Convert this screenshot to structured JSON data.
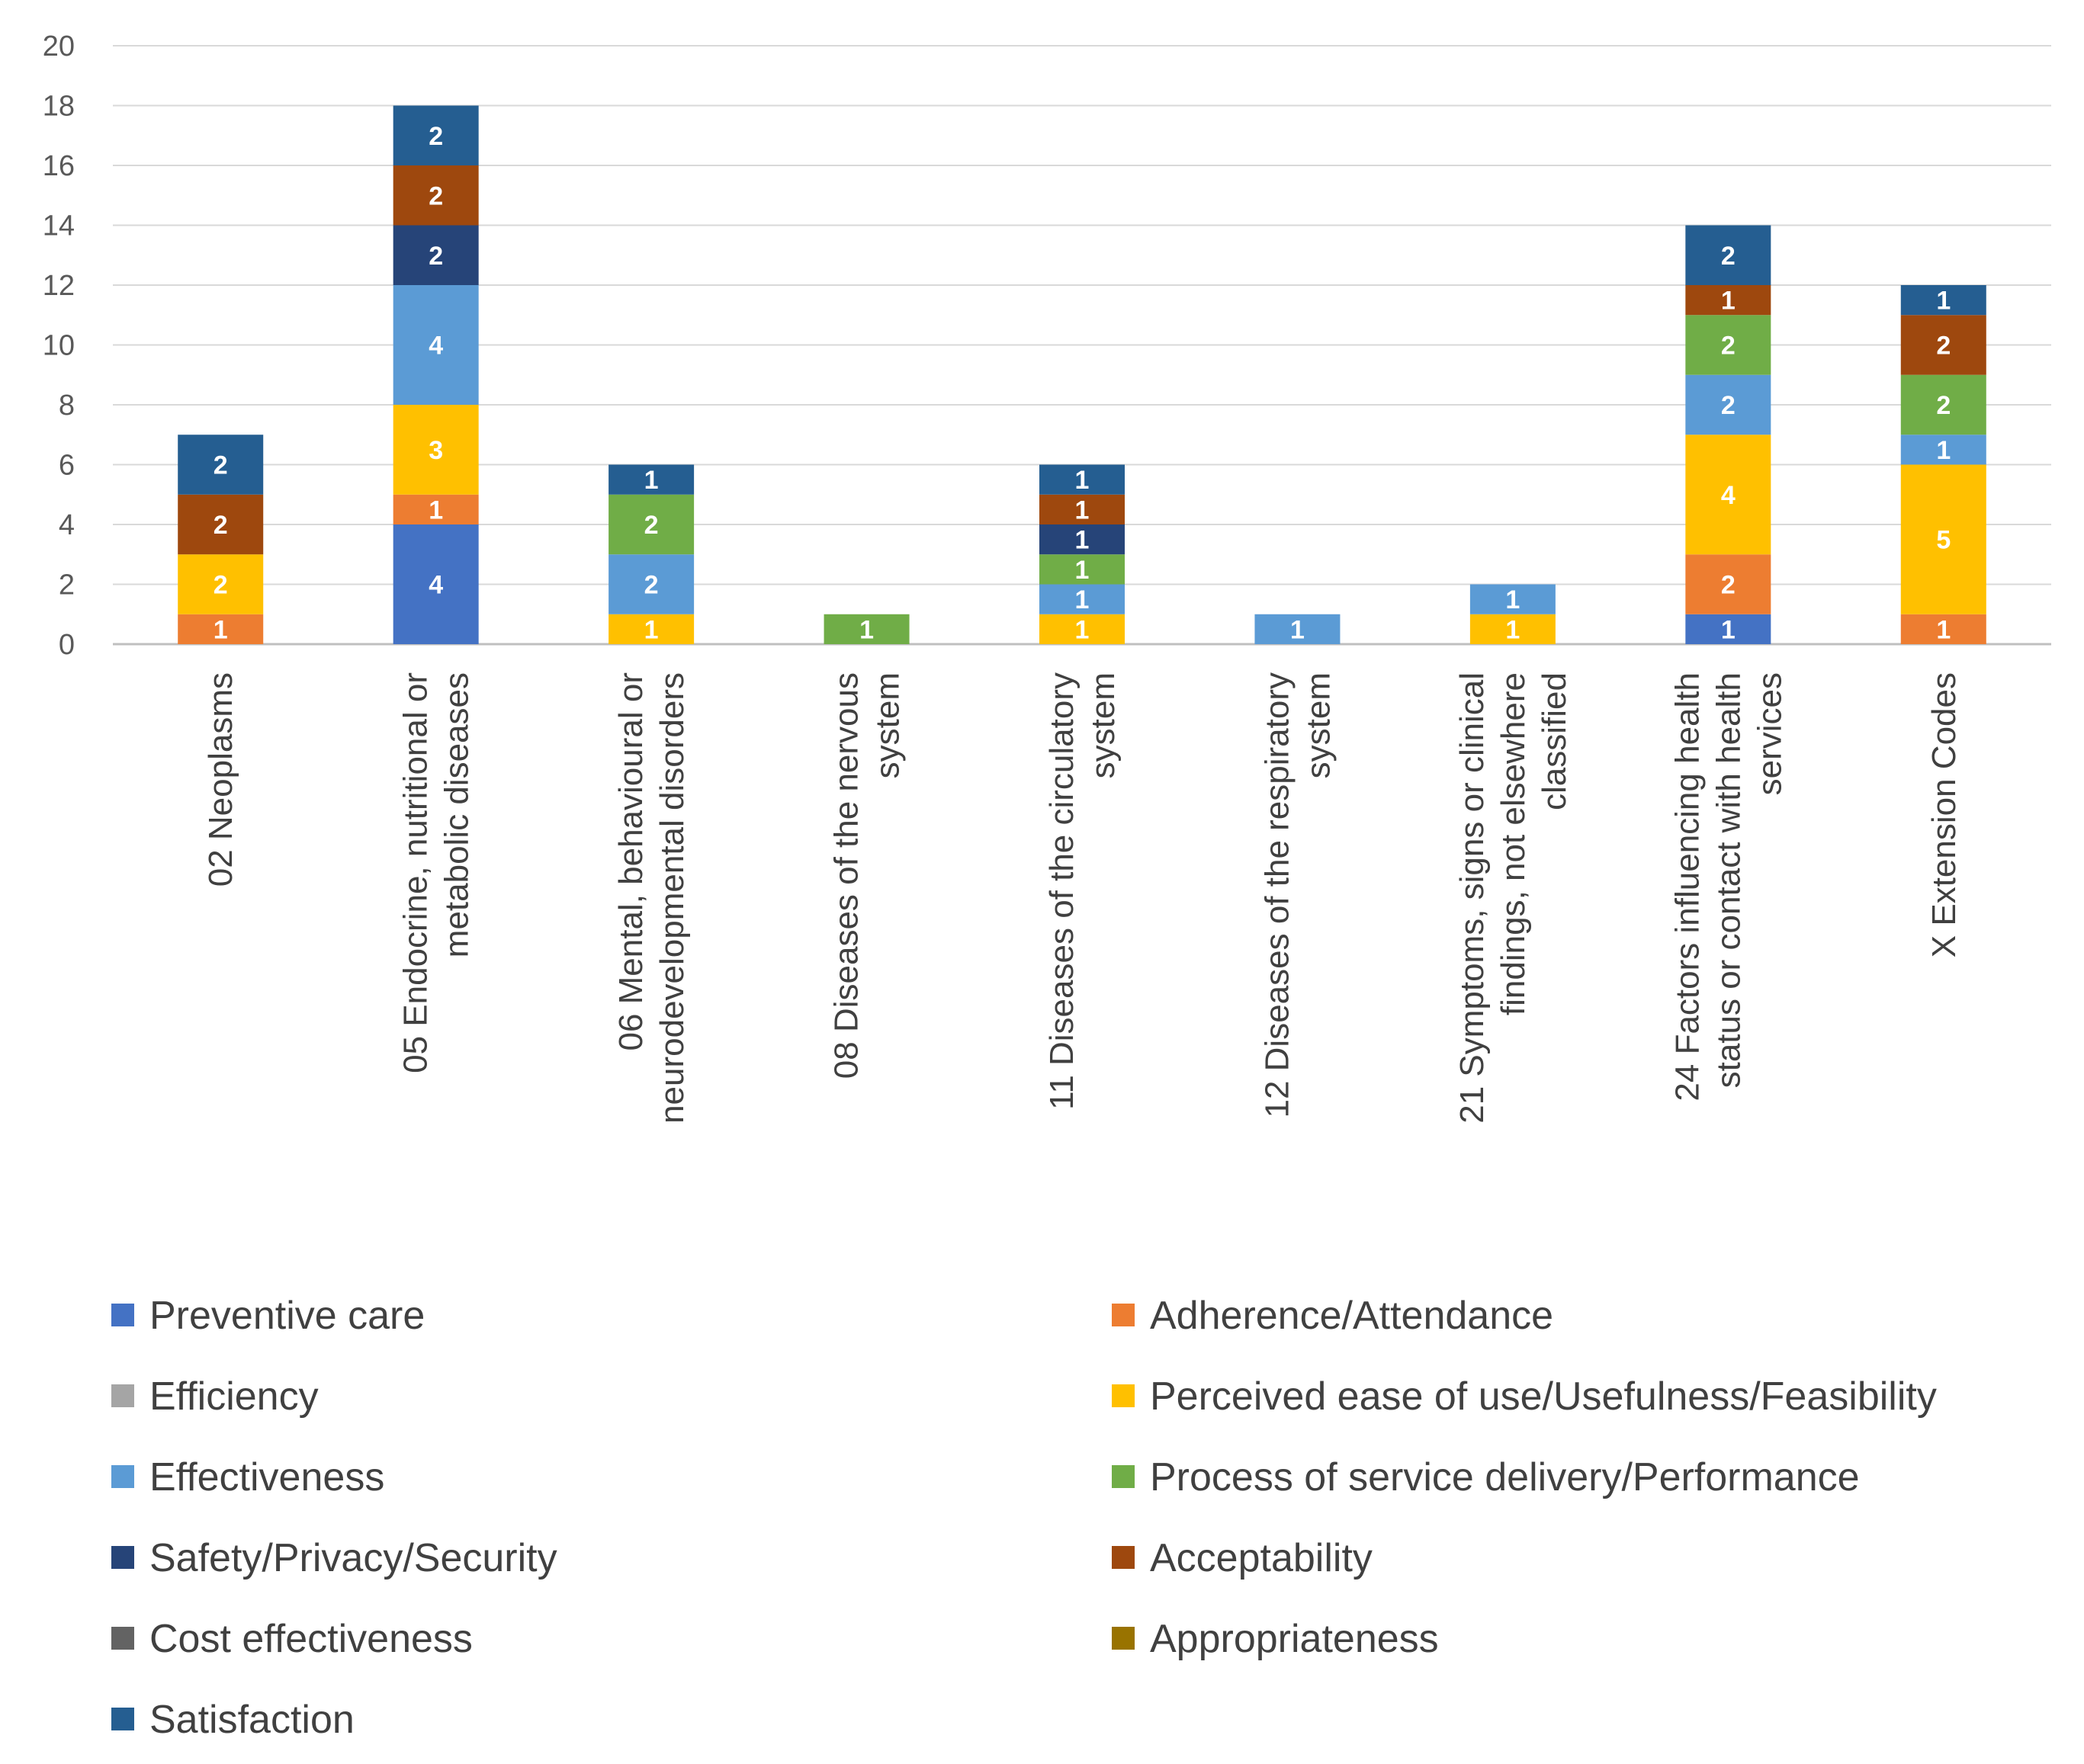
{
  "chart_data": {
    "type": "bar",
    "stacked": true,
    "title": "",
    "xlabel": "",
    "ylabel": "",
    "ylim": [
      0,
      20
    ],
    "yticks": [
      0,
      2,
      4,
      6,
      8,
      10,
      12,
      14,
      16,
      18,
      20
    ],
    "grid": true,
    "legend_position": "bottom",
    "categories": [
      [
        "02 Neoplasms"
      ],
      [
        "05 Endocrine, nutritional or",
        "metabolic diseases"
      ],
      [
        "06 Mental, behavioural or",
        "neurodevelopmental disorders"
      ],
      [
        "08 Diseases of the nervous",
        "system"
      ],
      [
        "11 Diseases of the circulatory",
        "system"
      ],
      [
        "12 Diseases of the respiratory",
        "system"
      ],
      [
        "21 Symptoms, signs or clinical",
        "findings, not elsewhere",
        "classified"
      ],
      [
        "24 Factors influencing health",
        "status or contact with health",
        "services"
      ],
      [
        "X Extension Codes"
      ]
    ],
    "series": [
      {
        "name": "Preventive care",
        "color": "#4472C4",
        "values": [
          0,
          4,
          0,
          0,
          0,
          0,
          0,
          1,
          0
        ]
      },
      {
        "name": "Adherence/Attendance",
        "color": "#ED7D31",
        "values": [
          1,
          1,
          0,
          0,
          0,
          0,
          0,
          2,
          1
        ]
      },
      {
        "name": "Efficiency",
        "color": "#A5A5A5",
        "values": [
          0,
          0,
          0,
          0,
          0,
          0,
          0,
          0,
          0
        ]
      },
      {
        "name": "Perceived ease of use/Usefulness/Feasibility",
        "color": "#FFC000",
        "values": [
          2,
          3,
          1,
          0,
          1,
          0,
          1,
          4,
          5
        ]
      },
      {
        "name": "Effectiveness",
        "color": "#5B9BD5",
        "values": [
          0,
          4,
          2,
          0,
          1,
          1,
          1,
          2,
          1
        ]
      },
      {
        "name": "Process of service delivery/Performance",
        "color": "#70AD47",
        "values": [
          0,
          0,
          2,
          1,
          1,
          0,
          0,
          2,
          2
        ]
      },
      {
        "name": "Safety/Privacy/Security",
        "color": "#264478",
        "values": [
          0,
          2,
          0,
          0,
          1,
          0,
          0,
          0,
          0
        ]
      },
      {
        "name": "Acceptability",
        "color": "#9E480E",
        "values": [
          2,
          2,
          0,
          0,
          1,
          0,
          0,
          1,
          2
        ]
      },
      {
        "name": "Cost effectiveness",
        "color": "#636363",
        "values": [
          0,
          0,
          0,
          0,
          0,
          0,
          0,
          0,
          0
        ]
      },
      {
        "name": "Appropriateness",
        "color": "#997300",
        "values": [
          0,
          0,
          0,
          0,
          0,
          0,
          0,
          0,
          0
        ]
      },
      {
        "name": "Satisfaction",
        "color": "#255E91",
        "values": [
          2,
          2,
          1,
          0,
          1,
          0,
          0,
          2,
          1
        ]
      }
    ]
  }
}
